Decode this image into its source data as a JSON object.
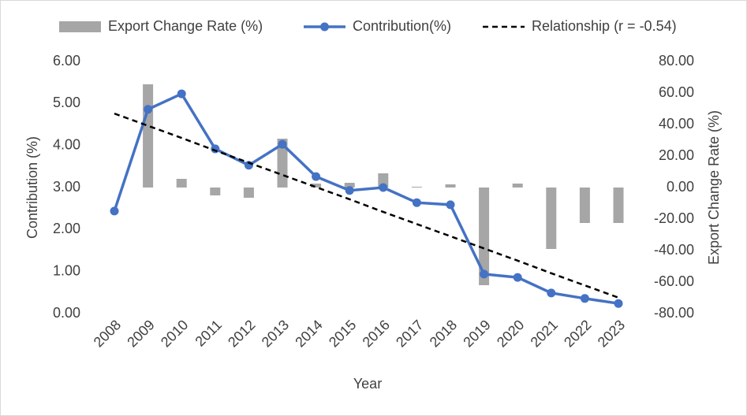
{
  "chart_data": {
    "type": "combo",
    "legend": "top",
    "categories": [
      "2008",
      "2009",
      "2010",
      "2011",
      "2012",
      "2013",
      "2014",
      "2015",
      "2016",
      "2017",
      "2018",
      "2019",
      "2020",
      "2021",
      "2022",
      "2023"
    ],
    "series": [
      {
        "name": "Export Change Rate (%)",
        "type": "bar",
        "axis": "y2",
        "color": "#a6a6a6",
        "values": [
          null,
          65.5,
          5.5,
          -5,
          -6.5,
          31,
          2.5,
          3,
          9,
          0.5,
          2,
          -62,
          2.5,
          -39,
          -22.5,
          -22.5
        ]
      },
      {
        "name": "Contribution(%)",
        "type": "line",
        "color": "#4472c4",
        "marker": true,
        "values": [
          2.44,
          4.86,
          5.23,
          3.92,
          3.53,
          4.03,
          3.26,
          2.93,
          3.0,
          2.64,
          2.59,
          0.94,
          0.86,
          0.49,
          0.36,
          0.24
        ]
      },
      {
        "name": "Relationship (r = -0.54)",
        "type": "line",
        "color": "#000000",
        "dashed": true,
        "values": [
          4.76,
          4.47,
          4.18,
          3.88,
          3.59,
          3.3,
          3.01,
          2.72,
          2.42,
          2.13,
          1.84,
          1.55,
          1.26,
          0.96,
          0.67,
          0.38
        ]
      }
    ],
    "x_label": "Year",
    "y_label": "Contribution (%)",
    "y2_label": "Export Change Rate (%)",
    "ylim": [
      0,
      6
    ],
    "yticks": [
      {
        "value": 0,
        "label": "0.00"
      },
      {
        "value": 1,
        "label": "1.00"
      },
      {
        "value": 2,
        "label": "2.00"
      },
      {
        "value": 3,
        "label": "3.00"
      },
      {
        "value": 4,
        "label": "4.00"
      },
      {
        "value": 5,
        "label": "5.00"
      },
      {
        "value": 6,
        "label": "6.00"
      }
    ],
    "y2lim": [
      -80,
      80
    ],
    "y2ticks": [
      {
        "value": -80,
        "label": "-80.00"
      },
      {
        "value": -60,
        "label": "-60.00"
      },
      {
        "value": -40,
        "label": "-40.00"
      },
      {
        "value": -20,
        "label": "-20.00"
      },
      {
        "value": 0,
        "label": "0.00"
      },
      {
        "value": 20,
        "label": "20.00"
      },
      {
        "value": 40,
        "label": "40.00"
      },
      {
        "value": 60,
        "label": "60.00"
      },
      {
        "value": 80,
        "label": "80.00"
      }
    ],
    "grid": false
  }
}
